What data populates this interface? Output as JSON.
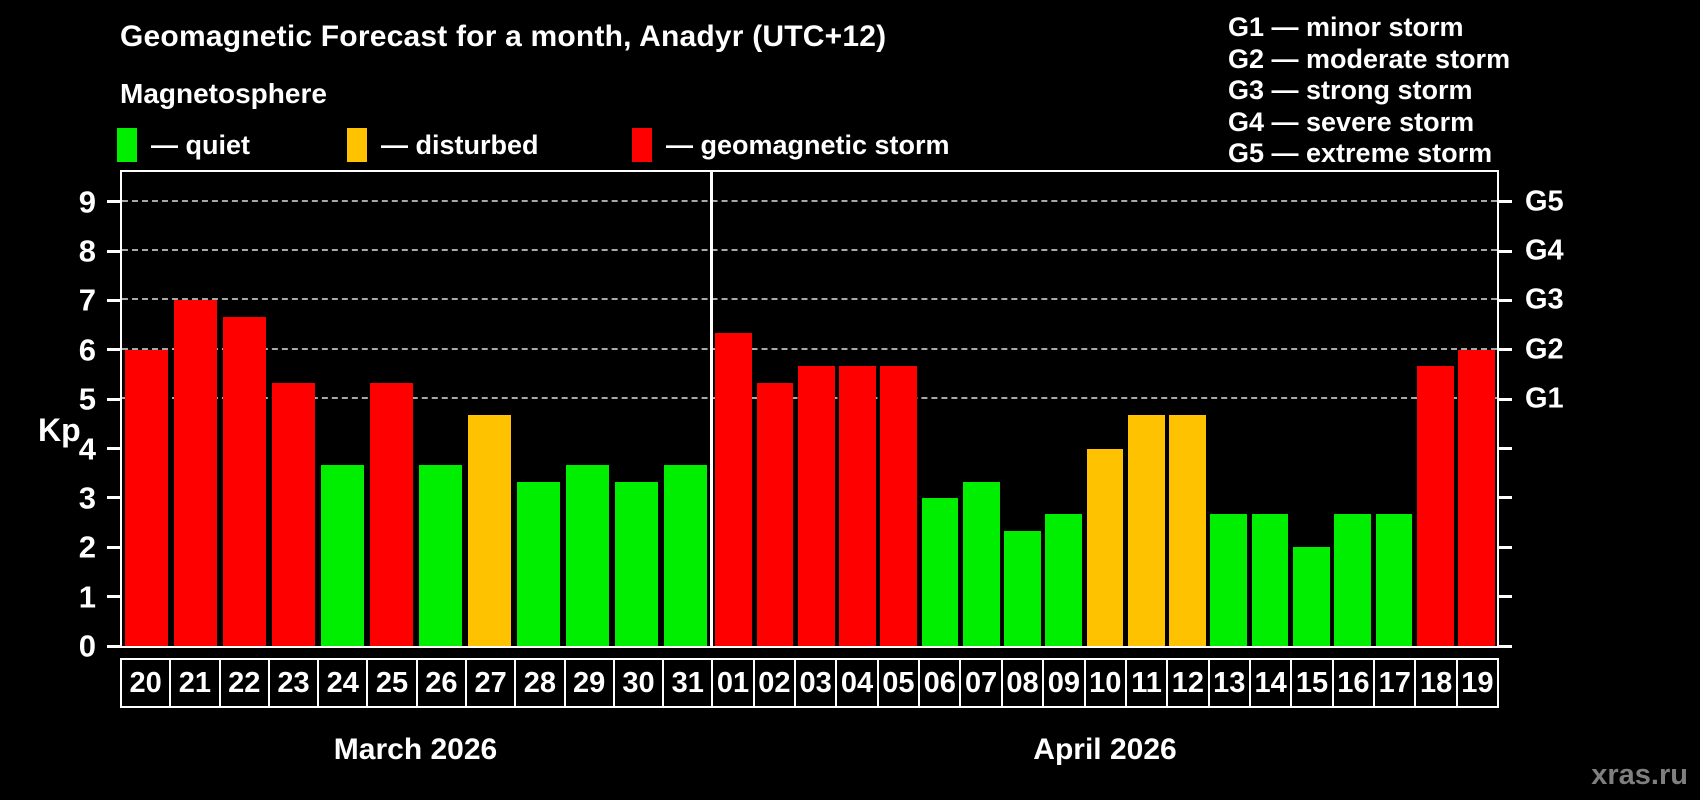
{
  "title": "Geomagnetic Forecast for a month, Anadyr (UTC+12)",
  "legend": {
    "heading": "Magnetosphere",
    "items": [
      {
        "key": "quiet",
        "label": "— quiet",
        "color": "#00ee00"
      },
      {
        "key": "disturbed",
        "label": "— disturbed",
        "color": "#ffc200"
      },
      {
        "key": "storm",
        "label": "— geomagnetic storm",
        "color": "#ff0000"
      }
    ]
  },
  "storm_scale": {
    "items": [
      "G1 — minor storm",
      "G2 — moderate storm",
      "G3 — strong storm",
      "G4 — severe storm",
      "G5 — extreme storm"
    ]
  },
  "watermark": "xras.ru",
  "chart_data": {
    "type": "bar",
    "title": "Geomagnetic Forecast for a month, Anadyr (UTC+12)",
    "xlabel": "",
    "ylabel": "Kp",
    "ylim": [
      0,
      9.6
    ],
    "yticks": [
      0,
      1,
      2,
      3,
      4,
      5,
      6,
      7,
      8,
      9
    ],
    "gridlines": [
      5,
      6,
      7,
      8,
      9
    ],
    "grid": "dashed, horizontal only, Kp 5–9",
    "legend_position": "top",
    "right_axis": [
      {
        "value": 5,
        "label": "G1"
      },
      {
        "value": 6,
        "label": "G2"
      },
      {
        "value": 7,
        "label": "G3"
      },
      {
        "value": 8,
        "label": "G4"
      },
      {
        "value": 9,
        "label": "G5"
      }
    ],
    "colors": {
      "quiet": "#00ee00",
      "disturbed": "#ffc200",
      "storm": "#ff0000"
    },
    "months": [
      {
        "label": "March 2026",
        "days": [
          "20",
          "21",
          "22",
          "23",
          "24",
          "25",
          "26",
          "27",
          "28",
          "29",
          "30",
          "31"
        ],
        "values": [
          6.0,
          7.0,
          6.67,
          5.33,
          3.67,
          5.33,
          3.67,
          4.67,
          3.33,
          3.67,
          3.33,
          3.67
        ],
        "status": [
          "storm",
          "storm",
          "storm",
          "storm",
          "quiet",
          "storm",
          "quiet",
          "disturbed",
          "quiet",
          "quiet",
          "quiet",
          "quiet"
        ]
      },
      {
        "label": "April 2026",
        "days": [
          "01",
          "02",
          "03",
          "04",
          "05",
          "06",
          "07",
          "08",
          "09",
          "10",
          "11",
          "12",
          "13",
          "14",
          "15",
          "16",
          "17",
          "18",
          "19"
        ],
        "values": [
          6.33,
          5.33,
          5.67,
          5.67,
          5.67,
          3.0,
          3.33,
          2.33,
          2.67,
          4.0,
          4.67,
          4.67,
          2.67,
          2.67,
          2.0,
          2.67,
          2.67,
          5.67,
          6.0
        ],
        "status": [
          "storm",
          "storm",
          "storm",
          "storm",
          "storm",
          "quiet",
          "quiet",
          "quiet",
          "quiet",
          "disturbed",
          "disturbed",
          "disturbed",
          "quiet",
          "quiet",
          "quiet",
          "quiet",
          "quiet",
          "storm",
          "storm"
        ]
      }
    ]
  }
}
